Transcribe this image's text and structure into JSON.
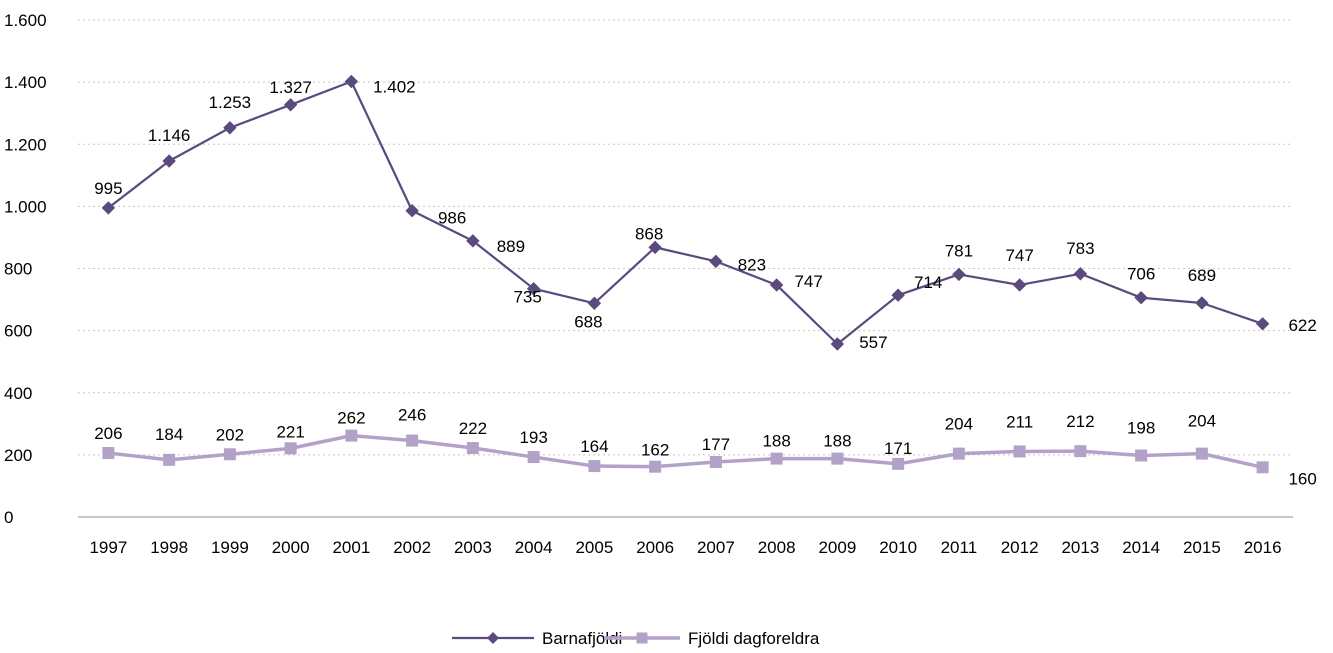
{
  "chart_data": {
    "type": "line",
    "title": "",
    "xlabel": "",
    "ylabel": "",
    "ylim": [
      0,
      1600
    ],
    "yticks": [
      0,
      200,
      400,
      600,
      800,
      1000,
      1200,
      1400,
      1600
    ],
    "ytick_labels": [
      "0",
      "200",
      "400",
      "600",
      "800",
      "1.000",
      "1.200",
      "1.400",
      "1.600"
    ],
    "grid": "horizontal dotted",
    "legend_position": "bottom",
    "categories": [
      "1997",
      "1998",
      "1999",
      "2000",
      "2001",
      "2002",
      "2003",
      "2004",
      "2005",
      "2006",
      "2007",
      "2008",
      "2009",
      "2010",
      "2011",
      "2012",
      "2013",
      "2014",
      "2015",
      "2016"
    ],
    "series": [
      {
        "name": "Barnafjöldi",
        "color": "#5b4a7d",
        "marker": "diamond",
        "values": [
          995,
          1146,
          1253,
          1327,
          1402,
          986,
          889,
          735,
          688,
          868,
          823,
          747,
          557,
          714,
          781,
          747,
          783,
          706,
          689,
          622
        ],
        "labels": [
          "995",
          "1.146",
          "1.253",
          "1.327",
          "1.402",
          "986",
          "889",
          "735",
          "688",
          "868",
          "823",
          "747",
          "557",
          "714",
          "781",
          "747",
          "783",
          "706",
          "689",
          "622"
        ]
      },
      {
        "name": "Fjöldi dagforeldra",
        "color": "#b3a2c7",
        "marker": "square",
        "values": [
          206,
          184,
          202,
          221,
          262,
          246,
          222,
          193,
          164,
          162,
          177,
          188,
          188,
          171,
          204,
          211,
          212,
          198,
          204,
          160
        ],
        "labels": [
          "206",
          "184",
          "202",
          "221",
          "262",
          "246",
          "222",
          "193",
          "164",
          "162",
          "177",
          "188",
          "188",
          "171",
          "204",
          "211",
          "212",
          "198",
          "204",
          "160"
        ]
      }
    ]
  }
}
